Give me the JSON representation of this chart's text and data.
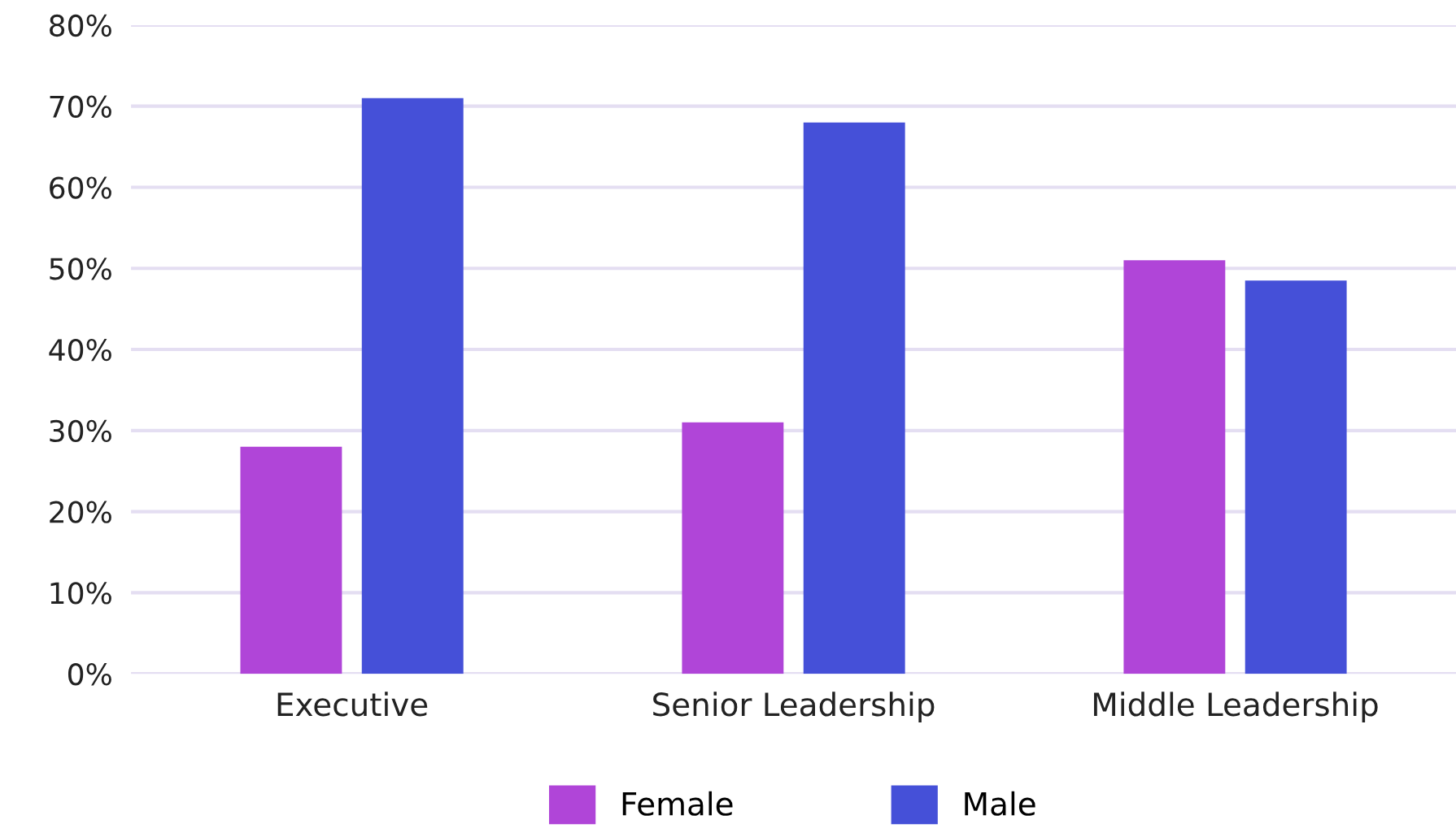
{
  "chart_data": {
    "type": "bar",
    "categories": [
      "Executive",
      "Senior Leadership",
      "Middle Leadership"
    ],
    "series": [
      {
        "name": "Female",
        "color": "#b045d8",
        "values": [
          28,
          31,
          51
        ]
      },
      {
        "name": "Male",
        "color": "#4550d8",
        "values": [
          71,
          68,
          48.5
        ]
      }
    ],
    "ylim": [
      0,
      80
    ],
    "yticks": [
      {
        "value": 0,
        "label": "0%"
      },
      {
        "value": 10,
        "label": "10%"
      },
      {
        "value": 20,
        "label": "20%"
      },
      {
        "value": 30,
        "label": "30%"
      },
      {
        "value": 40,
        "label": "40%"
      },
      {
        "value": 50,
        "label": "50%"
      },
      {
        "value": 60,
        "label": "60%"
      },
      {
        "value": 70,
        "label": "70%"
      },
      {
        "value": 80,
        "label": "80%"
      }
    ],
    "grid": "y",
    "legend": "bottom"
  }
}
